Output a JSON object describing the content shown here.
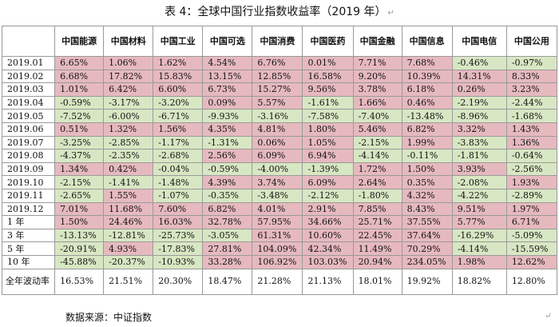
{
  "title": "表 4：全球中国行业指数收益率（2019 年）",
  "paragraph_mark": "↵",
  "headers": [
    "",
    "中国能源",
    "中国材料",
    "中国工业",
    "中国可选",
    "中国消费",
    "中国医药",
    "中国金融",
    "中国信息",
    "中国电信",
    "中国公用"
  ],
  "rows": [
    {
      "label": "2019.01",
      "values": [
        "6.65%",
        "1.06%",
        "1.62%",
        "4.54%",
        "6.76%",
        "0.01%",
        "7.71%",
        "7.68%",
        "-0.46%",
        "-0.97%"
      ]
    },
    {
      "label": "2019.02",
      "values": [
        "6.68%",
        "17.82%",
        "15.83%",
        "13.15%",
        "12.85%",
        "16.58%",
        "9.20%",
        "10.39%",
        "14.31%",
        "8.33%"
      ]
    },
    {
      "label": "2019.03",
      "values": [
        "1.01%",
        "6.42%",
        "6.60%",
        "6.73%",
        "15.27%",
        "9.56%",
        "3.78%",
        "6.18%",
        "0.26%",
        "3.23%"
      ]
    },
    {
      "label": "2019.04",
      "values": [
        "-0.59%",
        "-3.17%",
        "-3.20%",
        "0.09%",
        "5.57%",
        "-1.61%",
        "1.66%",
        "0.46%",
        "-2.19%",
        "-2.44%"
      ]
    },
    {
      "label": "2019.05",
      "values": [
        "-7.52%",
        "-6.00%",
        "-6.71%",
        "-9.93%",
        "-3.16%",
        "-7.58%",
        "-7.40%",
        "-13.48%",
        "-8.96%",
        "-1.68%"
      ]
    },
    {
      "label": "2019.06",
      "values": [
        "0.51%",
        "1.32%",
        "1.56%",
        "4.35%",
        "4.81%",
        "1.80%",
        "5.46%",
        "6.82%",
        "3.32%",
        "1.43%"
      ]
    },
    {
      "label": "2019.07",
      "values": [
        "-3.25%",
        "-2.85%",
        "-1.17%",
        "-1.31%",
        "0.06%",
        "1.05%",
        "-2.15%",
        "1.99%",
        "-3.83%",
        "1.36%"
      ]
    },
    {
      "label": "2019.08",
      "values": [
        "-4.37%",
        "-2.35%",
        "-2.68%",
        "2.56%",
        "6.09%",
        "6.94%",
        "-4.14%",
        "-0.11%",
        "-1.81%",
        "-0.64%"
      ]
    },
    {
      "label": "2019.09",
      "values": [
        "1.34%",
        "0.42%",
        "-0.04%",
        "-0.59%",
        "-4.00%",
        "-1.39%",
        "1.72%",
        "1.50%",
        "3.93%",
        "-2.56%"
      ]
    },
    {
      "label": "2019.10",
      "values": [
        "-2.15%",
        "-1.41%",
        "-1.48%",
        "4.39%",
        "3.74%",
        "6.09%",
        "2.64%",
        "0.35%",
        "-2.08%",
        "1.93%"
      ]
    },
    {
      "label": "2019.11",
      "values": [
        "-2.65%",
        "1.55%",
        "-1.07%",
        "-0.35%",
        "-3.48%",
        "-2.12%",
        "-1.80%",
        "4.32%",
        "-4.22%",
        "-2.89%"
      ]
    },
    {
      "label": "2019.12",
      "values": [
        "7.01%",
        "11.68%",
        "7.60%",
        "6.82%",
        "4.01%",
        "2.91%",
        "7.85%",
        "8.43%",
        "9.51%",
        "1.97%"
      ]
    },
    {
      "label": "1 年",
      "values": [
        "1.50%",
        "24.46%",
        "16.03%",
        "32.78%",
        "57.95%",
        "34.66%",
        "25.71%",
        "37.55%",
        "5.77%",
        "6.71%"
      ]
    },
    {
      "label": "3 年",
      "values": [
        "-13.13%",
        "-12.81%",
        "-25.73%",
        "-3.05%",
        "61.31%",
        "10.60%",
        "22.45%",
        "37.64%",
        "-16.29%",
        "-5.09%"
      ]
    },
    {
      "label": "5 年",
      "values": [
        "-20.91%",
        "4.93%",
        "-17.83%",
        "27.81%",
        "104.09%",
        "42.34%",
        "11.49%",
        "70.29%",
        "-4.14%",
        "-15.59%"
      ]
    },
    {
      "label": "10 年",
      "values": [
        "-45.88%",
        "-20.37%",
        "-10.93%",
        "33.28%",
        "106.92%",
        "103.03%",
        "20.94%",
        "234.05%",
        "1.98%",
        "12.62%"
      ]
    }
  ],
  "volatility": {
    "label": "全年波动率",
    "values": [
      "16.53%",
      "21.51%",
      "20.30%",
      "18.47%",
      "21.28%",
      "21.13%",
      "18.01%",
      "19.92%",
      "18.82%",
      "12.80%"
    ]
  },
  "source": "数据来源：中证指数",
  "colors": {
    "positive_cell": "#e6b9bf",
    "negative_cell": "#d8e7c3",
    "border": "#9a9a9a"
  }
}
